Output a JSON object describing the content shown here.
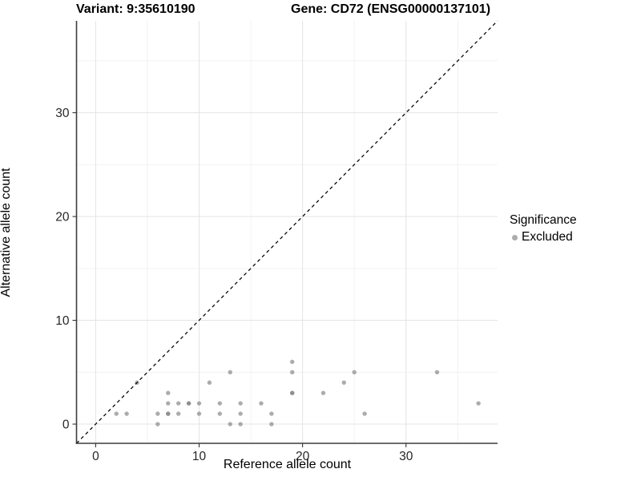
{
  "header": {
    "variant_title": "Variant: 9:35610190",
    "gene_title": "Gene: CD72 (ENSG00000137101)"
  },
  "legend": {
    "title": "Significance",
    "items": [
      {
        "label": "Excluded",
        "color": "#808080",
        "opacity": 0.65
      }
    ]
  },
  "chart_data": {
    "type": "scatter",
    "title": "Variant: 9:35610190   Gene: CD72 (ENSG00000137101)",
    "xlabel": "Reference allele count",
    "ylabel": "Alternative allele count",
    "xlim": [
      -1.85,
      38.85
    ],
    "ylim": [
      -1.85,
      38.85
    ],
    "x_ticks": [
      0,
      10,
      20,
      30
    ],
    "y_ticks": [
      0,
      10,
      20,
      30
    ],
    "x_minor_ticks": [
      5,
      15,
      25,
      35
    ],
    "y_minor_ticks": [
      5,
      15,
      25,
      35
    ],
    "grid": true,
    "legend_position": "right",
    "identity_line": {
      "type": "dashed",
      "slope": 1,
      "intercept": 0,
      "color": "#000000"
    },
    "series": [
      {
        "name": "Excluded",
        "color": "#808080",
        "opacity": 0.65,
        "points": [
          [
            2,
            1
          ],
          [
            3,
            1
          ],
          [
            4,
            4
          ],
          [
            6,
            0
          ],
          [
            6,
            1
          ],
          [
            7,
            1
          ],
          [
            7,
            1
          ],
          [
            7,
            2
          ],
          [
            7,
            3
          ],
          [
            8,
            1
          ],
          [
            8,
            2
          ],
          [
            9,
            2
          ],
          [
            9,
            2
          ],
          [
            10,
            1
          ],
          [
            10,
            2
          ],
          [
            11,
            4
          ],
          [
            12,
            1
          ],
          [
            12,
            2
          ],
          [
            13,
            0
          ],
          [
            13,
            5
          ],
          [
            14,
            0
          ],
          [
            14,
            1
          ],
          [
            14,
            2
          ],
          [
            16,
            2
          ],
          [
            17,
            0
          ],
          [
            17,
            1
          ],
          [
            19,
            3
          ],
          [
            19,
            3
          ],
          [
            19,
            5
          ],
          [
            19,
            6
          ],
          [
            22,
            3
          ],
          [
            24,
            4
          ],
          [
            25,
            5
          ],
          [
            26,
            1
          ],
          [
            33,
            5
          ],
          [
            37,
            2
          ]
        ]
      }
    ],
    "style": {
      "major_grid_color": "#e4e4e4",
      "minor_grid_color": "#f0f0f0",
      "axis_line_color": "#3c3c3c",
      "tick_color": "#333333",
      "tick_label_color": "#262626",
      "point_radius": 2.7
    }
  }
}
